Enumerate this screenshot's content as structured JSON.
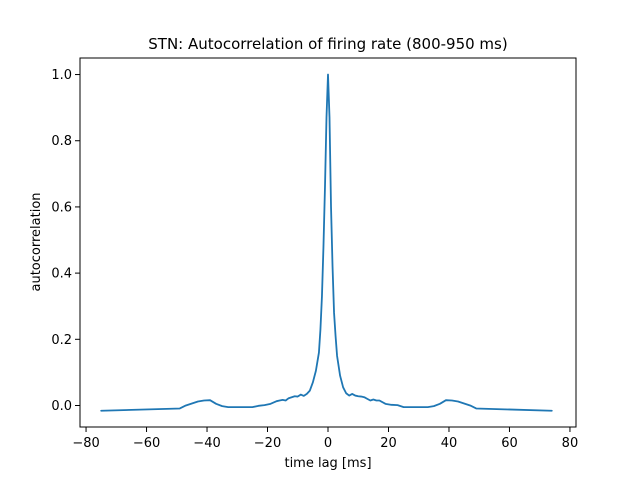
{
  "chart_data": {
    "type": "line",
    "title": "STN: Autocorrelation of firing rate (800-950 ms)",
    "xlabel": "time lag [ms]",
    "ylabel": "autocorrelation",
    "xlim": [
      -82,
      82
    ],
    "ylim": [
      -0.065,
      1.05
    ],
    "xticks": [
      -80,
      -60,
      -40,
      -20,
      0,
      20,
      40,
      60,
      80
    ],
    "xtick_labels": [
      "−80",
      "−60",
      "−40",
      "−20",
      "0",
      "20",
      "40",
      "60",
      "80"
    ],
    "yticks": [
      0.0,
      0.2,
      0.4,
      0.6,
      0.8,
      1.0
    ],
    "ytick_labels": [
      "0.0",
      "0.2",
      "0.4",
      "0.6",
      "0.8",
      "1.0"
    ],
    "grid": false,
    "legend": "none",
    "series": [
      {
        "color": "#1f77b4",
        "x": [
          -75,
          -49,
          -47,
          -45,
          -43,
          -41,
          -39,
          -37,
          -35,
          -33,
          -31,
          -29,
          -27,
          -25,
          -23,
          -21,
          -19,
          -17,
          -16,
          -15,
          -14,
          -13,
          -12,
          -11,
          -10,
          -9,
          -8,
          -7,
          -6,
          -5,
          -4,
          -3,
          -2.5,
          -2,
          -1.5,
          -1,
          -0.5,
          0,
          0.5,
          1,
          1.5,
          2,
          2.5,
          3,
          4,
          5,
          6,
          7,
          8,
          9,
          10,
          11,
          12,
          13,
          14,
          15,
          16,
          17,
          19,
          21,
          23,
          25,
          27,
          29,
          31,
          33,
          35,
          37,
          39,
          41,
          43,
          45,
          47,
          49,
          74
        ],
        "y": [
          -0.016,
          -0.009,
          0.0,
          0.006,
          0.012,
          0.015,
          0.016,
          0.005,
          -0.002,
          -0.005,
          -0.005,
          -0.005,
          -0.005,
          -0.005,
          -0.001,
          0.001,
          0.005,
          0.013,
          0.015,
          0.017,
          0.015,
          0.022,
          0.025,
          0.028,
          0.027,
          0.033,
          0.029,
          0.035,
          0.045,
          0.07,
          0.105,
          0.16,
          0.23,
          0.33,
          0.48,
          0.66,
          0.87,
          1.0,
          0.87,
          0.6,
          0.42,
          0.28,
          0.21,
          0.15,
          0.09,
          0.055,
          0.037,
          0.03,
          0.035,
          0.03,
          0.028,
          0.027,
          0.025,
          0.02,
          0.015,
          0.018,
          0.015,
          0.015,
          0.005,
          0.002,
          0.001,
          -0.005,
          -0.005,
          -0.005,
          -0.005,
          -0.005,
          -0.002,
          0.005,
          0.016,
          0.015,
          0.012,
          0.006,
          0.0,
          -0.009,
          -0.016
        ]
      }
    ]
  }
}
